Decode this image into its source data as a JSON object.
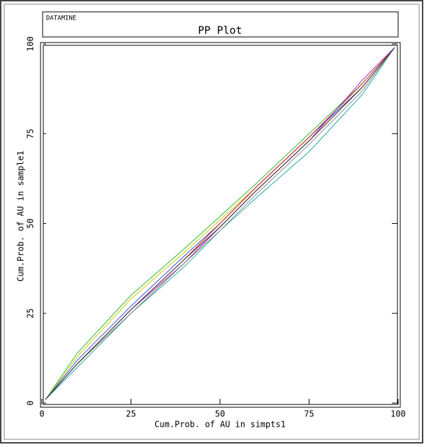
{
  "header": "DATAMINE",
  "chart_data": {
    "type": "line",
    "title": "PP Plot",
    "x_label": "Cum.Prob. of AU in simpts1",
    "y_label": "Cum.Prob. of AU in sample1",
    "xlim": [
      0,
      100
    ],
    "ylim": [
      0,
      100
    ],
    "xticks": [
      0,
      25,
      50,
      75,
      100
    ],
    "yticks": [
      0,
      25,
      50,
      75,
      100
    ],
    "x": [
      1,
      10,
      25,
      40,
      50,
      60,
      75,
      90,
      99
    ],
    "series": [
      {
        "color": "#33bb33",
        "values": [
          1,
          14,
          30,
          43,
          52,
          61,
          75,
          89,
          99
        ]
      },
      {
        "color": "#cccc00",
        "values": [
          1,
          13,
          29,
          42,
          51,
          60,
          74,
          89,
          99
        ]
      },
      {
        "color": "#3355dd",
        "values": [
          1,
          12,
          27,
          41,
          50,
          60,
          74,
          88,
          99
        ]
      },
      {
        "color": "#dd2222",
        "values": [
          1,
          11,
          26,
          40,
          50,
          60,
          74,
          89,
          99
        ]
      },
      {
        "color": "#ff8800",
        "values": [
          1,
          11,
          25,
          39,
          49,
          59,
          73,
          88,
          99
        ]
      },
      {
        "color": "#9933cc",
        "values": [
          1,
          11,
          26,
          39,
          49,
          59,
          73,
          90,
          99
        ]
      },
      {
        "color": "#22aaaa",
        "values": [
          1,
          10,
          25,
          38,
          48,
          57,
          70,
          86,
          99
        ]
      },
      {
        "color": "#888888",
        "values": [
          1,
          11,
          25,
          39,
          48,
          58,
          72,
          87,
          99
        ]
      },
      {
        "color": "#333333",
        "values": [
          1,
          11,
          26,
          40,
          49,
          59,
          73,
          88,
          99
        ]
      }
    ]
  }
}
